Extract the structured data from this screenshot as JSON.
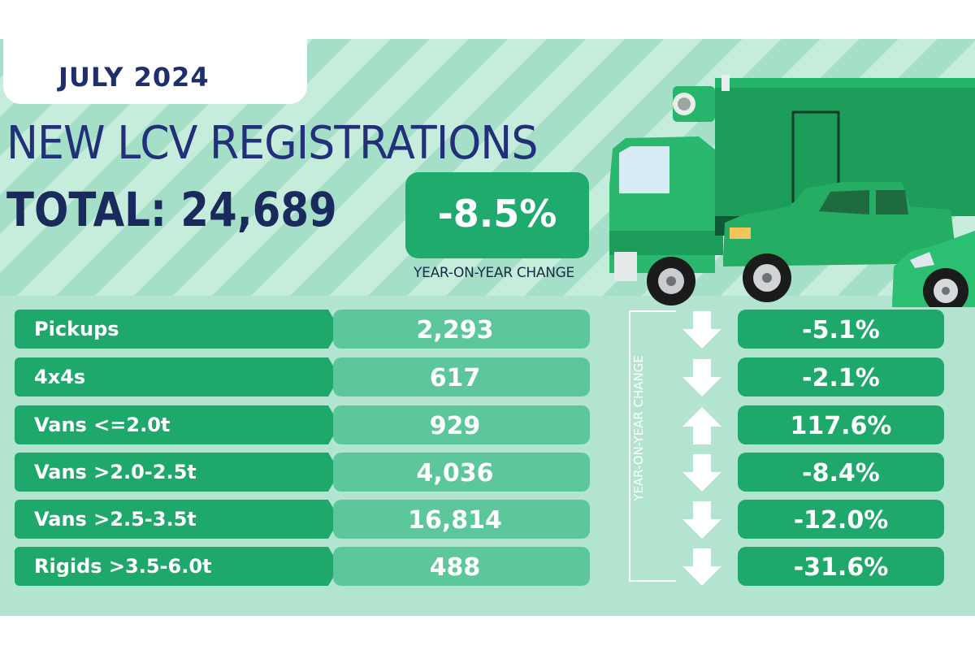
{
  "header": {
    "month": "JULY 2024",
    "headline": "NEW LCV REGISTRATIONS",
    "total": "TOTAL: 24,689",
    "yoy_value": "-8.5%",
    "yoy_caption": "YEAR-ON-YEAR CHANGE"
  },
  "side_label": "YEAR-ON-YEAR CHANGE",
  "categories": [
    {
      "label": "Pickups",
      "value": "2,293",
      "change": "-5.1%",
      "direction": "down"
    },
    {
      "label": "4x4s",
      "value": "617",
      "change": "-2.1%",
      "direction": "down"
    },
    {
      "label": "Vans <=2.0t",
      "value": "929",
      "change": "117.6%",
      "direction": "up"
    },
    {
      "label": "Vans >2.0-2.5t",
      "value": "4,036",
      "change": "-8.4%",
      "direction": "down"
    },
    {
      "label": "Vans >2.5-3.5t",
      "value": "16,814",
      "change": "-12.0%",
      "direction": "down"
    },
    {
      "label": "Rigids >3.5-6.0t",
      "value": "488",
      "change": "-31.6%",
      "direction": "down"
    }
  ],
  "colors": {
    "navy": "#1f2f6e",
    "green": "#1ea86b",
    "light_green": "#5cc79a",
    "background": "#b3e4cf"
  },
  "icons": [
    "truck-icon",
    "pickup-icon",
    "car-icon",
    "arrow-down-icon",
    "arrow-up-icon"
  ]
}
